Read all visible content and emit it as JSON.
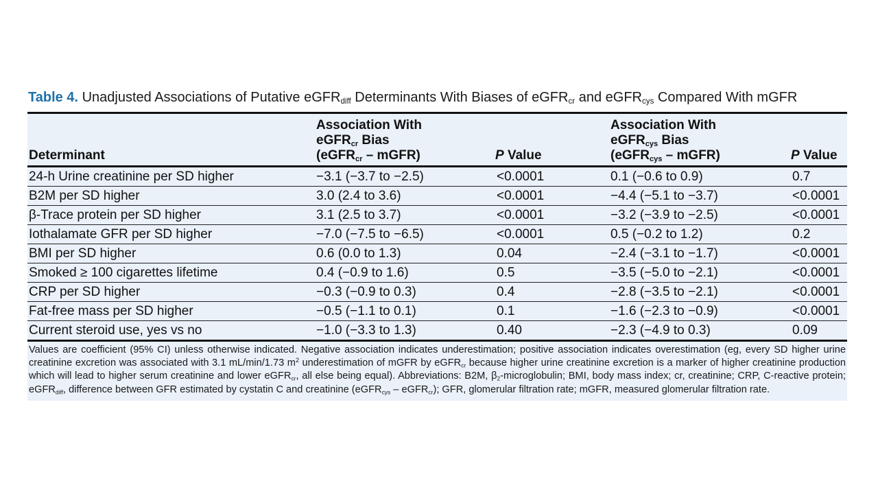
{
  "caption": {
    "label": "Table 4.",
    "title_parts": {
      "t1": "Unadjusted Associations of Putative eGFR",
      "s1": "diff",
      "t2": " Determinants With Biases of eGFR",
      "s2": "cr",
      "t3": " and eGFR",
      "s3": "cys",
      "t4": " Compared With mGFR"
    }
  },
  "table": {
    "headers": {
      "determinant": "Determinant",
      "cr_line1": "Association With",
      "cr_line2_pre": "eGFR",
      "cr_line2_sub": "cr",
      "cr_line2_post": " Bias",
      "cr_line3_pre": "(eGFR",
      "cr_line3_sub": "cr",
      "cr_line3_post": " – mGFR)",
      "pvalue_italic": "P",
      "pvalue_rest": " Value",
      "cys_line1": "Association With",
      "cys_line2_pre": "eGFR",
      "cys_line2_sub": "cys",
      "cys_line2_post": " Bias",
      "cys_line3_pre": "(eGFR",
      "cys_line3_sub": "cys",
      "cys_line3_post": " – mGFR)"
    },
    "rows": [
      {
        "determinant": "24-h Urine creatinine per SD higher",
        "cr_assoc": "−3.1 (−3.7 to −2.5)",
        "cr_p": "<0.0001",
        "cys_assoc": "0.1 (−0.6 to 0.9)",
        "cys_p": "0.7"
      },
      {
        "determinant": "B2M per SD higher",
        "cr_assoc": "3.0 (2.4 to 3.6)",
        "cr_p": "<0.0001",
        "cys_assoc": "−4.4 (−5.1 to −3.7)",
        "cys_p": "<0.0001"
      },
      {
        "determinant": "β-Trace protein per SD higher",
        "cr_assoc": "3.1 (2.5 to 3.7)",
        "cr_p": "<0.0001",
        "cys_assoc": "−3.2 (−3.9 to −2.5)",
        "cys_p": "<0.0001"
      },
      {
        "determinant": "Iothalamate GFR per SD higher",
        "cr_assoc": "−7.0 (−7.5 to −6.5)",
        "cr_p": "<0.0001",
        "cys_assoc": "0.5 (−0.2 to 1.2)",
        "cys_p": "0.2"
      },
      {
        "determinant": "BMI per SD higher",
        "cr_assoc": "0.6 (0.0 to 1.3)",
        "cr_p": "0.04",
        "cys_assoc": "−2.4 (−3.1 to −1.7)",
        "cys_p": "<0.0001"
      },
      {
        "determinant": "Smoked ≥ 100 cigarettes lifetime",
        "cr_assoc": "0.4 (−0.9 to 1.6)",
        "cr_p": "0.5",
        "cys_assoc": "−3.5 (−5.0 to −2.1)",
        "cys_p": "<0.0001"
      },
      {
        "determinant": "CRP per SD higher",
        "cr_assoc": "−0.3 (−0.9 to 0.3)",
        "cr_p": "0.4",
        "cys_assoc": "−2.8 (−3.5 to −2.1)",
        "cys_p": "<0.0001"
      },
      {
        "determinant": "Fat-free mass per SD higher",
        "cr_assoc": "−0.5 (−1.1 to 0.1)",
        "cr_p": "0.1",
        "cys_assoc": "−1.6 (−2.3 to −0.9)",
        "cys_p": "<0.0001"
      },
      {
        "determinant": "Current steroid use, yes vs no",
        "cr_assoc": "−1.0 (−3.3 to 1.3)",
        "cr_p": "0.40",
        "cys_assoc": "−2.3 (−4.9 to 0.3)",
        "cys_p": "0.09"
      }
    ]
  },
  "footnote": {
    "f1": "Values are coefficient (95% CI) unless otherwise indicated. Negative association indicates underestimation; positive association indicates overestimation (eg, every SD higher urine creatinine excretion was associated with 3.1 mL/min/1.73 m",
    "f1_sup": "2",
    "f2": " underestimation of mGFR by eGFR",
    "f2_sub": "cr",
    "f3": " because higher urine creatinine excretion is a marker of higher creatinine production which will lead to higher serum creatinine and lower eGFR",
    "f3_sub": "cr",
    "f4": ", all else being equal). Abbreviations: B2M, β",
    "f4_sub": "2",
    "f5": "-microglobulin; BMI, body mass index; cr, creatinine; CRP, C-reactive protein; eGFR",
    "f5_sub": "diff",
    "f6": ", difference between GFR estimated by cystatin C and creatinine (eGFR",
    "f6_sub": "cys",
    "f7": " – eGFR",
    "f7_sub": "cr",
    "f8": "); GFR, glomerular filtration rate; mGFR, measured glomerular filtration rate."
  }
}
